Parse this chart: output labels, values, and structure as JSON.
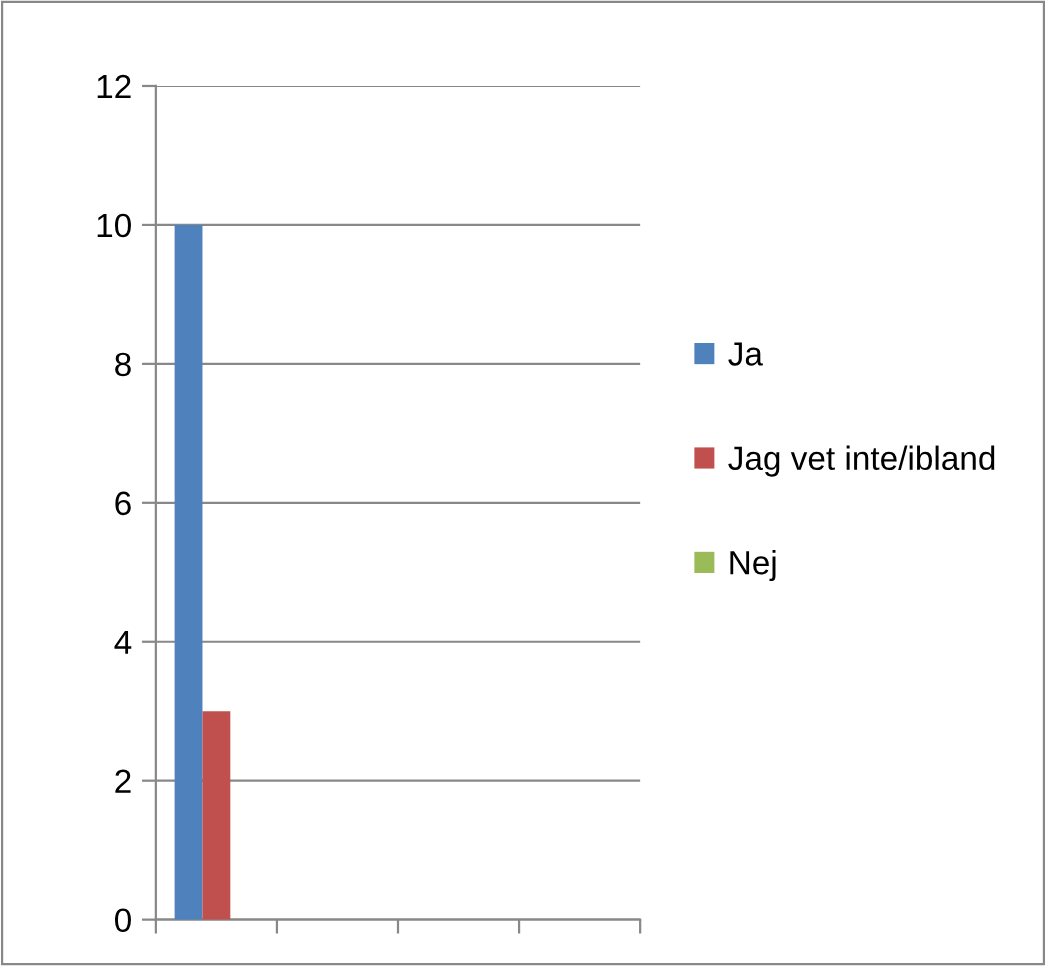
{
  "chart_data": {
    "type": "bar",
    "categories": [
      null,
      null,
      null,
      null
    ],
    "series": [
      {
        "name": "Ja",
        "color": "#4f81bd",
        "values": [
          10,
          null,
          null,
          null
        ]
      },
      {
        "name": "Jag vet inte/ibland",
        "color": "#c0504d",
        "values": [
          3,
          null,
          null,
          null
        ]
      },
      {
        "name": "Nej",
        "color": "#9bbb59",
        "values": [
          0,
          null,
          null,
          null
        ]
      }
    ],
    "ylim": [
      0,
      12
    ],
    "yticks": [
      0,
      2,
      4,
      6,
      8,
      10,
      12
    ],
    "grid": "y",
    "legend": "right",
    "tick_labels": "y"
  }
}
